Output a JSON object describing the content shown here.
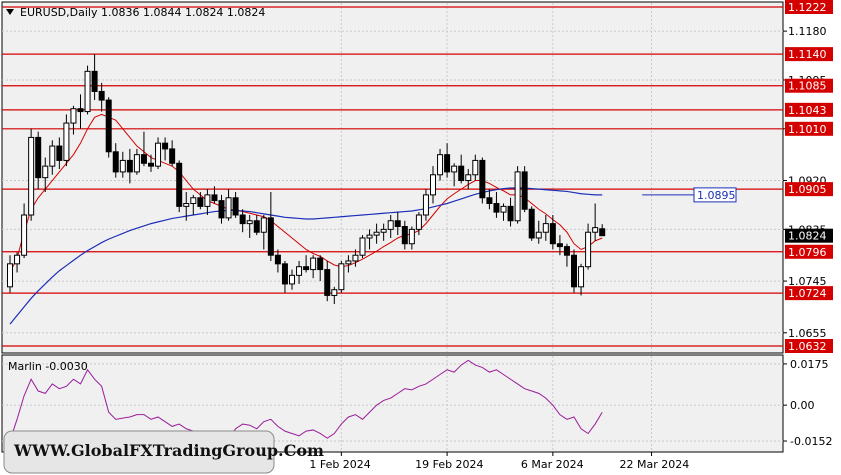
{
  "header": {
    "symbol_title": "EURUSD,Daily  1.0836 1.0844 1.0824 1.0824",
    "indicator_title": "Marlin -0.0030"
  },
  "watermark": "WWW.GlobalFXTradingGroup.Com",
  "colors": {
    "background": "#ffffff",
    "panel_background": "#f0f0f0",
    "grid": "#c8c8c8",
    "level_line": "#d40000",
    "ma_fast": "#d40000",
    "ma_slow": "#1c2fb8",
    "oscillator": "#9a1c9a",
    "candle": "#000000",
    "current_price_bg": "#000000"
  },
  "chart_data": [
    {
      "type": "candlestick",
      "symbol": "EURUSD",
      "timeframe": "Daily",
      "ohlc_current": {
        "open": 1.0836,
        "high": 1.0844,
        "low": 1.0824,
        "close": 1.0824
      },
      "ylim": [
        1.0632,
        1.1222
      ],
      "y_tick_labels": [
        "1.1180",
        "1.1095",
        "1.1010",
        "1.0920",
        "1.0835",
        "1.0745",
        "1.0655"
      ],
      "y_tick_values": [
        1.118,
        1.1095,
        1.101,
        1.092,
        1.0835,
        1.0745,
        1.0655
      ],
      "x_tick_labels": [
        "1 Feb 2024",
        "19 Feb 2024",
        "6 Mar 2024",
        "22 Mar 2024"
      ],
      "x_tick_bar_index": [
        47,
        62,
        77,
        91
      ],
      "horizontal_levels": [
        1.1222,
        1.114,
        1.1085,
        1.1043,
        1.101,
        1.0905,
        1.0796,
        1.0724,
        1.0632
      ],
      "horizontal_level_labels": [
        "1.1222",
        "1.1140",
        "1.1085",
        "1.1043",
        "1.1010",
        "1.0905",
        "1.0796",
        "1.0724",
        "1.0632"
      ],
      "current_price": "1.0824",
      "ma_slow_label": "1.0895",
      "ma_slow_label_value": 1.0895,
      "candles": [
        [
          1.0735,
          1.079,
          1.0725,
          1.0775
        ],
        [
          1.0775,
          1.0795,
          1.076,
          1.079
        ],
        [
          1.079,
          1.088,
          1.0785,
          1.086
        ],
        [
          1.086,
          1.101,
          1.085,
          1.0995
        ],
        [
          1.0995,
          1.1005,
          1.0905,
          1.0925
        ],
        [
          1.0925,
          1.096,
          1.09,
          1.0945
        ],
        [
          1.0945,
          1.099,
          1.093,
          1.098
        ],
        [
          1.098,
          1.0995,
          1.094,
          1.0955
        ],
        [
          1.0955,
          1.1035,
          1.0945,
          1.102
        ],
        [
          1.102,
          1.105,
          1.1,
          1.1045
        ],
        [
          1.1045,
          1.107,
          1.101,
          1.104
        ],
        [
          1.104,
          1.112,
          1.1035,
          1.111
        ],
        [
          1.111,
          1.114,
          1.106,
          1.1075
        ],
        [
          1.1075,
          1.109,
          1.104,
          1.106
        ],
        [
          1.106,
          1.1065,
          1.096,
          1.097
        ],
        [
          1.097,
          1.0985,
          1.0925,
          1.0935
        ],
        [
          1.0935,
          1.097,
          1.0925,
          1.0955
        ],
        [
          1.0955,
          1.0975,
          1.0915,
          1.0935
        ],
        [
          1.0935,
          1.0975,
          1.093,
          1.0965
        ],
        [
          1.0965,
          1.1005,
          1.0945,
          1.095
        ],
        [
          1.095,
          1.0965,
          1.0935,
          1.0945
        ],
        [
          1.0945,
          1.0995,
          1.094,
          1.0985
        ],
        [
          1.0985,
          1.0995,
          1.0955,
          1.0975
        ],
        [
          1.0975,
          1.099,
          1.0945,
          1.095
        ],
        [
          1.095,
          1.0955,
          1.0865,
          1.0875
        ],
        [
          1.0875,
          1.09,
          1.085,
          1.088
        ],
        [
          1.088,
          1.0895,
          1.086,
          1.089
        ],
        [
          1.089,
          1.09,
          1.087,
          1.0875
        ],
        [
          1.0875,
          1.0905,
          1.086,
          1.0895
        ],
        [
          1.0895,
          1.091,
          1.088,
          1.0885
        ],
        [
          1.0885,
          1.0895,
          1.0845,
          1.0855
        ],
        [
          1.0855,
          1.0905,
          1.085,
          1.089
        ],
        [
          1.089,
          1.09,
          1.0855,
          1.086
        ],
        [
          1.086,
          1.087,
          1.083,
          1.0845
        ],
        [
          1.0845,
          1.086,
          1.082,
          1.085
        ],
        [
          1.085,
          1.086,
          1.0825,
          1.083
        ],
        [
          1.083,
          1.086,
          1.08,
          1.0855
        ],
        [
          1.0855,
          1.09,
          1.078,
          1.079
        ],
        [
          1.079,
          1.08,
          1.076,
          1.0775
        ],
        [
          1.0775,
          1.078,
          1.0725,
          1.074
        ],
        [
          1.074,
          1.0765,
          1.073,
          1.0755
        ],
        [
          1.0755,
          1.078,
          1.074,
          1.077
        ],
        [
          1.077,
          1.079,
          1.076,
          1.0765
        ],
        [
          1.0765,
          1.079,
          1.075,
          1.0785
        ],
        [
          1.0785,
          1.079,
          1.0745,
          1.0765
        ],
        [
          1.0765,
          1.078,
          1.071,
          1.072
        ],
        [
          1.072,
          1.0735,
          1.0705,
          1.073
        ],
        [
          1.073,
          1.078,
          1.0725,
          1.0775
        ],
        [
          1.0775,
          1.079,
          1.076,
          1.078
        ],
        [
          1.078,
          1.08,
          1.077,
          1.079
        ],
        [
          1.079,
          1.0825,
          1.0785,
          1.082
        ],
        [
          1.082,
          1.0835,
          1.08,
          1.0825
        ],
        [
          1.0825,
          1.0845,
          1.081,
          1.083
        ],
        [
          1.083,
          1.0845,
          1.0815,
          1.0835
        ],
        [
          1.0835,
          1.086,
          1.082,
          1.085
        ],
        [
          1.085,
          1.0865,
          1.0825,
          1.084
        ],
        [
          1.084,
          1.085,
          1.08,
          1.081
        ],
        [
          1.081,
          1.084,
          1.08,
          1.0835
        ],
        [
          1.0835,
          1.0865,
          1.0825,
          1.086
        ],
        [
          1.086,
          1.0905,
          1.085,
          1.0895
        ],
        [
          1.0895,
          1.0945,
          1.088,
          1.093
        ],
        [
          1.093,
          1.0975,
          1.092,
          1.0965
        ],
        [
          1.0965,
          1.0985,
          1.0925,
          1.0935
        ],
        [
          1.0935,
          1.095,
          1.091,
          1.0945
        ],
        [
          1.0945,
          1.0965,
          1.0915,
          1.092
        ],
        [
          1.092,
          1.094,
          1.0905,
          1.093
        ],
        [
          1.093,
          1.0965,
          1.092,
          1.0955
        ],
        [
          1.0955,
          1.096,
          1.088,
          1.089
        ],
        [
          1.089,
          1.0905,
          1.087,
          1.088
        ],
        [
          1.088,
          1.09,
          1.0855,
          1.0865
        ],
        [
          1.0865,
          1.088,
          1.085,
          1.0875
        ],
        [
          1.0875,
          1.089,
          1.084,
          1.085
        ],
        [
          1.085,
          1.0945,
          1.0845,
          1.0935
        ],
        [
          1.0935,
          1.0945,
          1.0865,
          1.087
        ],
        [
          1.087,
          1.0875,
          1.0815,
          1.082
        ],
        [
          1.082,
          1.085,
          1.081,
          1.083
        ],
        [
          1.083,
          1.086,
          1.0815,
          1.0845
        ],
        [
          1.0845,
          1.086,
          1.08,
          1.081
        ],
        [
          1.081,
          1.0825,
          1.079,
          1.0805
        ],
        [
          1.0805,
          1.081,
          1.077,
          1.079
        ],
        [
          1.079,
          1.08,
          1.0725,
          1.0735
        ],
        [
          1.0735,
          1.0775,
          1.072,
          1.077
        ],
        [
          1.077,
          1.0845,
          1.0765,
          1.083
        ],
        [
          1.083,
          1.088,
          1.0815,
          1.0838
        ],
        [
          1.0836,
          1.0844,
          1.0824,
          1.0824
        ]
      ],
      "ma_fast": [
        1.076,
        1.0785,
        1.083,
        1.087,
        1.089,
        1.0905,
        1.092,
        1.0935,
        1.095,
        1.0965,
        1.0985,
        1.101,
        1.103,
        1.1035,
        1.103,
        1.1025,
        1.101,
        1.0995,
        1.098,
        1.097,
        1.096,
        1.0955,
        1.095,
        1.0945,
        1.0935,
        1.092,
        1.0905,
        1.0895,
        1.0885,
        1.088,
        1.0875,
        1.087,
        1.0868,
        1.0866,
        1.0863,
        1.086,
        1.0857,
        1.085,
        1.084,
        1.083,
        1.082,
        1.081,
        1.08,
        1.0793,
        1.0788,
        1.078,
        1.0773,
        1.077,
        1.0772,
        1.0777,
        1.0783,
        1.079,
        1.0797,
        1.0805,
        1.0812,
        1.082,
        1.0825,
        1.0827,
        1.0833,
        1.0845,
        1.086,
        1.0875,
        1.0888,
        1.0897,
        1.0905,
        1.0913,
        1.092,
        1.092,
        1.0915,
        1.0908,
        1.0902,
        1.0895,
        1.0895,
        1.089,
        1.088,
        1.087,
        1.0862,
        1.0852,
        1.0843,
        1.083,
        1.081,
        1.08,
        1.0805,
        1.0815,
        1.082
      ],
      "ma_slow": [
        1.067,
        1.0685,
        1.07,
        1.0715,
        1.0728,
        1.074,
        1.0752,
        1.0763,
        1.0772,
        1.0781,
        1.079,
        1.0798,
        1.0805,
        1.0812,
        1.0818,
        1.0823,
        1.0828,
        1.0833,
        1.0837,
        1.0841,
        1.0845,
        1.0848,
        1.0851,
        1.0854,
        1.0856,
        1.0858,
        1.086,
        1.0862,
        1.0864,
        1.0866,
        1.0867,
        1.0868,
        1.0868,
        1.0867,
        1.0866,
        1.0864,
        1.0862,
        1.086,
        1.0858,
        1.0856,
        1.0855,
        1.0854,
        1.0853,
        1.0853,
        1.0854,
        1.0855,
        1.0856,
        1.0857,
        1.0858,
        1.0859,
        1.086,
        1.0861,
        1.0862,
        1.0863,
        1.0864,
        1.0865,
        1.0866,
        1.0867,
        1.0869,
        1.0871,
        1.0874,
        1.0877,
        1.088,
        1.0884,
        1.0888,
        1.0892,
        1.0896,
        1.0899,
        1.0902,
        1.0904,
        1.0906,
        1.0907,
        1.0907,
        1.0907,
        1.0906,
        1.0905,
        1.0904,
        1.0903,
        1.0902,
        1.0901,
        1.0899,
        1.0897,
        1.0896,
        1.0895,
        1.0895
      ]
    },
    {
      "type": "line",
      "name": "Marlin",
      "current_value": -0.003,
      "ylim": [
        -0.019,
        0.02
      ],
      "y_tick_labels": [
        "0.0175",
        "0.00",
        "-0.0152"
      ],
      "y_tick_values": [
        0.0175,
        0.0,
        -0.0152
      ],
      "values": [
        -0.015,
        -0.006,
        0.004,
        0.011,
        0.006,
        0.005,
        0.009,
        0.007,
        0.008,
        0.011,
        0.009,
        0.015,
        0.011,
        0.008,
        -0.003,
        -0.006,
        -0.0055,
        -0.005,
        -0.004,
        -0.004,
        -0.006,
        -0.005,
        -0.007,
        -0.009,
        -0.008,
        -0.01,
        -0.011,
        -0.012,
        -0.011,
        -0.012,
        -0.015,
        -0.014,
        -0.01,
        -0.008,
        -0.0085,
        -0.01,
        -0.007,
        -0.006,
        -0.009,
        -0.011,
        -0.012,
        -0.013,
        -0.011,
        -0.0105,
        -0.012,
        -0.014,
        -0.012,
        -0.008,
        -0.005,
        -0.004,
        -0.006,
        -0.003,
        0.0,
        0.002,
        0.003,
        0.005,
        0.007,
        0.0065,
        0.008,
        0.009,
        0.011,
        0.013,
        0.015,
        0.014,
        0.017,
        0.019,
        0.017,
        0.016,
        0.014,
        0.015,
        0.013,
        0.011,
        0.009,
        0.007,
        0.006,
        0.005,
        0.003,
        0.0,
        -0.004,
        -0.006,
        -0.005,
        -0.01,
        -0.012,
        -0.008,
        -0.003
      ]
    }
  ]
}
